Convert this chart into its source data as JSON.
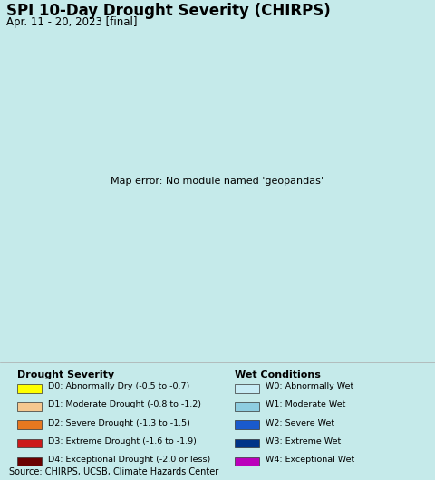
{
  "title": "SPI 10-Day Drought Severity (CHIRPS)",
  "subtitle": "Apr. 11 - 20, 2023 [final]",
  "source": "Source: CHIRPS, UCSB, Climate Hazards Center",
  "bg_color": "#c5eaea",
  "map_bg": "#c5eaea",
  "legend_bg": "#daf0f0",
  "title_color": "#000000",
  "drought_colors": [
    "#ffff00",
    "#f5c890",
    "#e87820",
    "#cc1a1a",
    "#6b0000"
  ],
  "drought_labels": [
    "D0: Abnormally Dry (-0.5 to -0.7)",
    "D1: Moderate Drought (-0.8 to -1.2)",
    "D2: Severe Drought (-1.3 to -1.5)",
    "D3: Extreme Drought (-1.6 to -1.9)",
    "D4: Exceptional Drought (-2.0 or less)"
  ],
  "wet_colors": [
    "#c8ecf5",
    "#8ecde0",
    "#1a5acc",
    "#003388",
    "#bb00bb"
  ],
  "wet_labels": [
    "W0: Abnormally Wet",
    "W1: Moderate Wet",
    "W2: Severe Wet",
    "W3: Extreme Wet",
    "W4: Exceptional Wet"
  ],
  "drought_section_title": "Drought Severity",
  "wet_section_title": "Wet Conditions",
  "title_fontsize": 12,
  "subtitle_fontsize": 8.5,
  "legend_title_fontsize": 8,
  "legend_label_fontsize": 6.8,
  "source_fontsize": 7,
  "map_extent": [
    79.3,
    82.2,
    5.6,
    10.15
  ],
  "india_color": "#e87820",
  "india_red_color": "#cc1a1a",
  "white_patch_color": "#ffffff"
}
